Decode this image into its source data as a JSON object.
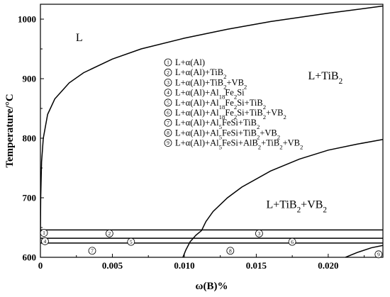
{
  "chart_data": {
    "type": "line",
    "xlabel": "ω(B)%",
    "ylabel": "Temperature/°C",
    "xlim": [
      0,
      0.0238
    ],
    "ylim": [
      600,
      1025
    ],
    "x_ticks": [
      0,
      0.005,
      0.01,
      0.015,
      0.02
    ],
    "x_tick_labels": [
      "0",
      "0.005",
      "0.010",
      "0.015",
      "0.020"
    ],
    "y_ticks": [
      600,
      700,
      800,
      900,
      1000
    ],
    "y_tick_labels": [
      "600",
      "700",
      "800",
      "900",
      "1000"
    ],
    "grid": false,
    "legend_position": "center",
    "series": [
      {
        "x": [
          0,
          2e-05,
          8e-05,
          0.0002,
          0.0005,
          0.001,
          0.002,
          0.003,
          0.005,
          0.007,
          0.01,
          0.013,
          0.016,
          0.02,
          0.0238
        ],
        "y": [
          640,
          700,
          760,
          800,
          840,
          866,
          893,
          910,
          933,
          950,
          968,
          983,
          996,
          1010,
          1022
        ]
      },
      {
        "x": [
          0.0099,
          0.0101,
          0.0104,
          0.0108,
          0.0112,
          0.0115,
          0.012,
          0.013,
          0.014,
          0.016,
          0.018,
          0.02,
          0.022,
          0.0238
        ],
        "y": [
          600,
          612,
          626,
          637,
          645,
          660,
          677,
          700,
          718,
          745,
          765,
          780,
          790,
          798
        ]
      },
      {
        "x": [
          0,
          0.0238
        ],
        "y": [
          646,
          646
        ]
      },
      {
        "x": [
          0,
          0.0238
        ],
        "y": [
          632,
          632
        ]
      },
      {
        "x": [
          0,
          0.0238
        ],
        "y": [
          624,
          624
        ]
      },
      {
        "x": [
          0.0212,
          0.022,
          0.023,
          0.0238
        ],
        "y": [
          600,
          608,
          616,
          620
        ]
      }
    ],
    "region_labels": [
      {
        "text": "L",
        "x": 0.0027,
        "y": 963
      },
      {
        "text_main": "L+TiB",
        "sub": "2",
        "x": 0.0198,
        "y": 899
      },
      {
        "text_main": "L+TiB",
        "sub": "2",
        "text_tail": "+VB",
        "sub2": "2",
        "x": 0.0178,
        "y": 683
      }
    ],
    "legend": [
      {
        "num": "1",
        "parts": [
          [
            "t",
            "L+α(Al)"
          ]
        ]
      },
      {
        "num": "2",
        "parts": [
          [
            "t",
            "L+α(Al)+TiB"
          ],
          [
            "s",
            "2"
          ]
        ]
      },
      {
        "num": "3",
        "parts": [
          [
            "t",
            "L+α(Al)+TiB"
          ],
          [
            "s",
            "2"
          ],
          [
            "t",
            "+VB"
          ],
          [
            "s",
            "2"
          ]
        ]
      },
      {
        "num": "4",
        "parts": [
          [
            "t",
            "L+α(Al)+Al"
          ],
          [
            "s",
            "18"
          ],
          [
            "t",
            "Fe"
          ],
          [
            "s",
            "2"
          ],
          [
            "t",
            "Si"
          ]
        ]
      },
      {
        "num": "5",
        "parts": [
          [
            "t",
            "L+α(Al)+Al"
          ],
          [
            "s",
            "18"
          ],
          [
            "t",
            "Fe"
          ],
          [
            "s",
            "2"
          ],
          [
            "t",
            "Si+TiB"
          ],
          [
            "s",
            "2"
          ]
        ]
      },
      {
        "num": "6",
        "parts": [
          [
            "t",
            "L+α(Al)+Al"
          ],
          [
            "s",
            "18"
          ],
          [
            "t",
            "Fe"
          ],
          [
            "s",
            "2"
          ],
          [
            "t",
            "Si+TiB"
          ],
          [
            "s",
            "2"
          ],
          [
            "t",
            "+VB"
          ],
          [
            "s",
            "2"
          ]
        ]
      },
      {
        "num": "7",
        "parts": [
          [
            "t",
            "L+α(Al)+Al"
          ],
          [
            "s",
            "5"
          ],
          [
            "t",
            "FeSi+TiB"
          ],
          [
            "s",
            "2"
          ]
        ]
      },
      {
        "num": "8",
        "parts": [
          [
            "t",
            "L+α(Al)+Al"
          ],
          [
            "s",
            "5"
          ],
          [
            "t",
            "FeSi+TiB"
          ],
          [
            "s",
            "2"
          ],
          [
            "t",
            "+VB"
          ],
          [
            "s",
            "2"
          ]
        ]
      },
      {
        "num": "9",
        "parts": [
          [
            "t",
            "L+α(Al)+Al"
          ],
          [
            "s",
            "5"
          ],
          [
            "t",
            "FeSi+AlB"
          ],
          [
            "s",
            "2"
          ],
          [
            "t",
            "+TiB"
          ],
          [
            "s",
            "2"
          ],
          [
            "t",
            "+VB"
          ],
          [
            "s",
            "2"
          ]
        ]
      }
    ],
    "plot_markers": [
      {
        "num": "1",
        "x": 5e-05,
        "y": 641
      },
      {
        "num": "2",
        "x": 0.0046,
        "y": 640
      },
      {
        "num": "3",
        "x": 0.015,
        "y": 640
      },
      {
        "num": "4",
        "x": 0.00012,
        "y": 627
      },
      {
        "num": "5",
        "x": 0.0061,
        "y": 626
      },
      {
        "num": "6",
        "x": 0.0173,
        "y": 626
      },
      {
        "num": "7",
        "x": 0.0034,
        "y": 611
      },
      {
        "num": "8",
        "x": 0.013,
        "y": 611
      },
      {
        "num": "9",
        "x": 0.0233,
        "y": 605
      }
    ]
  }
}
